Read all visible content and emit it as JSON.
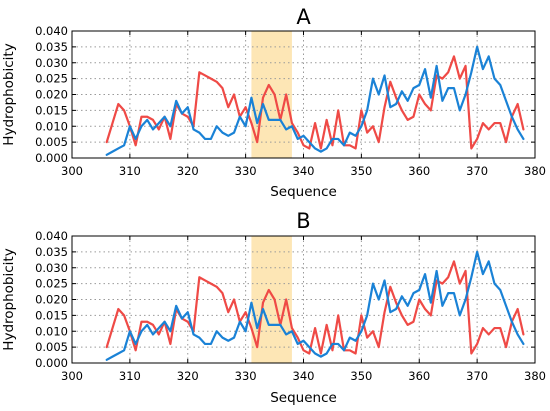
{
  "chart_data": [
    {
      "type": "line",
      "title": "A",
      "xlabel": "Sequence",
      "ylabel": "Hydrophobicity",
      "xlim": [
        300,
        380
      ],
      "ylim": [
        0,
        0.04
      ],
      "xticks": [
        "300",
        "310",
        "320",
        "330",
        "340",
        "350",
        "360",
        "370",
        "380"
      ],
      "yticks": [
        "0.000",
        "0.005",
        "0.010",
        "0.015",
        "0.020",
        "0.025",
        "0.030",
        "0.035",
        "0.040"
      ],
      "grid": true,
      "highlight": {
        "x0": 331,
        "x1": 338,
        "color": "#fde6b5"
      },
      "series": [
        {
          "color": "#ef4a46",
          "x": [
            306,
            307,
            308,
            309,
            310,
            311,
            312,
            313,
            314,
            315,
            316,
            317,
            318,
            319,
            320,
            321,
            322,
            323,
            324,
            325,
            326,
            327,
            328,
            329,
            330,
            331,
            332,
            333,
            334,
            335,
            336,
            337,
            338,
            339,
            340,
            341,
            342,
            343,
            344,
            345,
            346,
            347,
            348,
            349,
            350,
            351,
            352,
            353,
            354,
            355,
            356,
            357,
            358,
            359,
            360,
            361,
            362,
            363,
            364,
            365,
            366,
            367,
            368,
            369,
            370,
            371,
            372,
            373,
            374,
            375,
            376,
            377,
            378
          ],
          "y": [
            0.005,
            0.011,
            0.017,
            0.015,
            0.01,
            0.004,
            0.013,
            0.013,
            0.012,
            0.009,
            0.013,
            0.006,
            0.017,
            0.014,
            0.013,
            0.01,
            0.027,
            0.026,
            0.025,
            0.024,
            0.022,
            0.016,
            0.02,
            0.013,
            0.016,
            0.011,
            0.005,
            0.019,
            0.023,
            0.02,
            0.012,
            0.02,
            0.011,
            0.008,
            0.004,
            0.003,
            0.011,
            0.003,
            0.012,
            0.004,
            0.015,
            0.004,
            0.004,
            0.003,
            0.015,
            0.008,
            0.01,
            0.005,
            0.016,
            0.024,
            0.019,
            0.015,
            0.012,
            0.013,
            0.02,
            0.017,
            0.015,
            0.026,
            0.025,
            0.027,
            0.032,
            0.025,
            0.029,
            0.003,
            0.006,
            0.011,
            0.009,
            0.011,
            0.011,
            0.005,
            0.013,
            0.017,
            0.009
          ]
        },
        {
          "color": "#1a82d6",
          "x": [
            306,
            307,
            308,
            309,
            310,
            311,
            312,
            313,
            314,
            315,
            316,
            317,
            318,
            319,
            320,
            321,
            322,
            323,
            324,
            325,
            326,
            327,
            328,
            329,
            330,
            331,
            332,
            333,
            334,
            335,
            336,
            337,
            338,
            339,
            340,
            341,
            342,
            343,
            344,
            345,
            346,
            347,
            348,
            349,
            350,
            351,
            352,
            353,
            354,
            355,
            356,
            357,
            358,
            359,
            360,
            361,
            362,
            363,
            364,
            365,
            366,
            367,
            368,
            369,
            370,
            371,
            372,
            373,
            374,
            375,
            376,
            377,
            378
          ],
          "y": [
            0.001,
            0.002,
            0.003,
            0.004,
            0.01,
            0.006,
            0.01,
            0.012,
            0.009,
            0.011,
            0.013,
            0.01,
            0.018,
            0.014,
            0.016,
            0.009,
            0.008,
            0.006,
            0.006,
            0.01,
            0.008,
            0.007,
            0.008,
            0.013,
            0.01,
            0.019,
            0.011,
            0.017,
            0.012,
            0.012,
            0.012,
            0.009,
            0.01,
            0.006,
            0.007,
            0.005,
            0.003,
            0.002,
            0.003,
            0.006,
            0.006,
            0.004,
            0.008,
            0.007,
            0.01,
            0.015,
            0.025,
            0.02,
            0.026,
            0.016,
            0.017,
            0.021,
            0.018,
            0.022,
            0.023,
            0.028,
            0.019,
            0.029,
            0.018,
            0.022,
            0.022,
            0.015,
            0.02,
            0.027,
            0.035,
            0.028,
            0.032,
            0.025,
            0.023,
            0.018,
            0.013,
            0.009,
            0.006
          ]
        }
      ]
    },
    {
      "type": "line",
      "title": "B",
      "xlabel": "Sequence",
      "ylabel": "Hydrophobicity",
      "xlim": [
        300,
        380
      ],
      "ylim": [
        0,
        0.04
      ],
      "xticks": [
        "300",
        "310",
        "320",
        "330",
        "340",
        "350",
        "360",
        "370",
        "380"
      ],
      "yticks": [
        "0.000",
        "0.005",
        "0.010",
        "0.015",
        "0.020",
        "0.025",
        "0.030",
        "0.035",
        "0.040"
      ],
      "grid": true,
      "highlight": {
        "x0": 331,
        "x1": 338,
        "color": "#fde6b5"
      },
      "series": [
        {
          "color": "#ef4a46",
          "x": [
            306,
            307,
            308,
            309,
            310,
            311,
            312,
            313,
            314,
            315,
            316,
            317,
            318,
            319,
            320,
            321,
            322,
            323,
            324,
            325,
            326,
            327,
            328,
            329,
            330,
            331,
            332,
            333,
            334,
            335,
            336,
            337,
            338,
            339,
            340,
            341,
            342,
            343,
            344,
            345,
            346,
            347,
            348,
            349,
            350,
            351,
            352,
            353,
            354,
            355,
            356,
            357,
            358,
            359,
            360,
            361,
            362,
            363,
            364,
            365,
            366,
            367,
            368,
            369,
            370,
            371,
            372,
            373,
            374,
            375,
            376,
            377,
            378
          ],
          "y": [
            0.005,
            0.011,
            0.017,
            0.015,
            0.01,
            0.004,
            0.013,
            0.013,
            0.012,
            0.009,
            0.013,
            0.006,
            0.017,
            0.014,
            0.013,
            0.01,
            0.027,
            0.026,
            0.025,
            0.024,
            0.022,
            0.016,
            0.02,
            0.013,
            0.016,
            0.011,
            0.005,
            0.019,
            0.023,
            0.02,
            0.012,
            0.02,
            0.011,
            0.008,
            0.004,
            0.003,
            0.011,
            0.003,
            0.012,
            0.004,
            0.015,
            0.004,
            0.004,
            0.003,
            0.015,
            0.008,
            0.01,
            0.005,
            0.016,
            0.024,
            0.019,
            0.015,
            0.012,
            0.013,
            0.02,
            0.017,
            0.015,
            0.026,
            0.025,
            0.027,
            0.032,
            0.025,
            0.029,
            0.003,
            0.006,
            0.011,
            0.009,
            0.011,
            0.011,
            0.005,
            0.013,
            0.017,
            0.009
          ]
        },
        {
          "color": "#1a82d6",
          "x": [
            306,
            307,
            308,
            309,
            310,
            311,
            312,
            313,
            314,
            315,
            316,
            317,
            318,
            319,
            320,
            321,
            322,
            323,
            324,
            325,
            326,
            327,
            328,
            329,
            330,
            331,
            332,
            333,
            334,
            335,
            336,
            337,
            338,
            339,
            340,
            341,
            342,
            343,
            344,
            345,
            346,
            347,
            348,
            349,
            350,
            351,
            352,
            353,
            354,
            355,
            356,
            357,
            358,
            359,
            360,
            361,
            362,
            363,
            364,
            365,
            366,
            367,
            368,
            369,
            370,
            371,
            372,
            373,
            374,
            375,
            376,
            377,
            378
          ],
          "y": [
            0.001,
            0.002,
            0.003,
            0.004,
            0.01,
            0.006,
            0.01,
            0.012,
            0.009,
            0.011,
            0.013,
            0.01,
            0.018,
            0.014,
            0.016,
            0.009,
            0.008,
            0.006,
            0.006,
            0.01,
            0.008,
            0.007,
            0.008,
            0.013,
            0.01,
            0.019,
            0.011,
            0.017,
            0.012,
            0.012,
            0.012,
            0.009,
            0.01,
            0.006,
            0.007,
            0.005,
            0.003,
            0.002,
            0.003,
            0.006,
            0.006,
            0.004,
            0.008,
            0.007,
            0.01,
            0.015,
            0.025,
            0.02,
            0.026,
            0.016,
            0.017,
            0.021,
            0.018,
            0.022,
            0.023,
            0.028,
            0.019,
            0.029,
            0.018,
            0.022,
            0.022,
            0.015,
            0.02,
            0.027,
            0.035,
            0.028,
            0.032,
            0.025,
            0.023,
            0.018,
            0.013,
            0.009,
            0.006
          ]
        }
      ]
    }
  ]
}
